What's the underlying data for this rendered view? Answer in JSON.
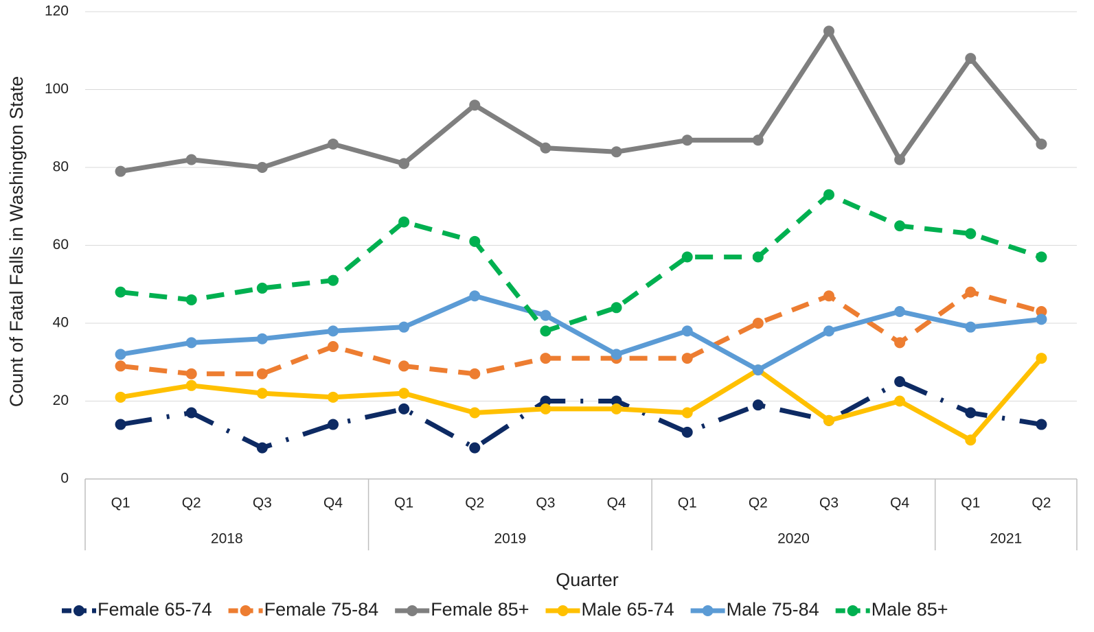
{
  "chart_data": {
    "type": "line",
    "x_label": "Quarter",
    "y_label": "Count of Fatal Falls in Washington State",
    "category_groups": [
      {
        "label": "2018",
        "categories": [
          "Q1",
          "Q2",
          "Q3",
          "Q4"
        ]
      },
      {
        "label": "2019",
        "categories": [
          "Q1",
          "Q2",
          "Q3",
          "Q4"
        ]
      },
      {
        "label": "2020",
        "categories": [
          "Q1",
          "Q2",
          "Q3",
          "Q4"
        ]
      },
      {
        "label": "2021",
        "categories": [
          "Q1",
          "Q2"
        ]
      }
    ],
    "ylim": [
      0,
      120
    ],
    "yticks": [
      0,
      20,
      40,
      60,
      80,
      100,
      120
    ],
    "grid": true,
    "legend": "bottom",
    "series": [
      {
        "name": "Female 65-74",
        "color": "#0d2a63",
        "dash": "long-dash-dot",
        "values": [
          14,
          17,
          8,
          14,
          18,
          8,
          20,
          20,
          12,
          19,
          15,
          25,
          17,
          14
        ]
      },
      {
        "name": "Female 75-84",
        "color": "#ed7d31",
        "dash": "dash",
        "values": [
          29,
          27,
          27,
          34,
          29,
          27,
          31,
          31,
          31,
          40,
          47,
          35,
          48,
          43
        ]
      },
      {
        "name": "Female 85+",
        "color": "#7f7f7f",
        "dash": "solid",
        "values": [
          79,
          82,
          80,
          86,
          81,
          96,
          85,
          84,
          87,
          87,
          115,
          82,
          108,
          86
        ]
      },
      {
        "name": "Male 65-74",
        "color": "#ffc000",
        "dash": "solid",
        "values": [
          21,
          24,
          22,
          21,
          22,
          17,
          18,
          18,
          17,
          28,
          15,
          20,
          10,
          31
        ]
      },
      {
        "name": "Male 75-84",
        "color": "#5b9bd5",
        "dash": "solid",
        "values": [
          32,
          35,
          36,
          38,
          39,
          47,
          42,
          32,
          38,
          28,
          38,
          43,
          39,
          41
        ]
      },
      {
        "name": "Male 85+",
        "color": "#00b050",
        "dash": "dash",
        "values": [
          48,
          46,
          49,
          51,
          66,
          61,
          38,
          44,
          57,
          57,
          73,
          65,
          63,
          57
        ]
      }
    ]
  }
}
